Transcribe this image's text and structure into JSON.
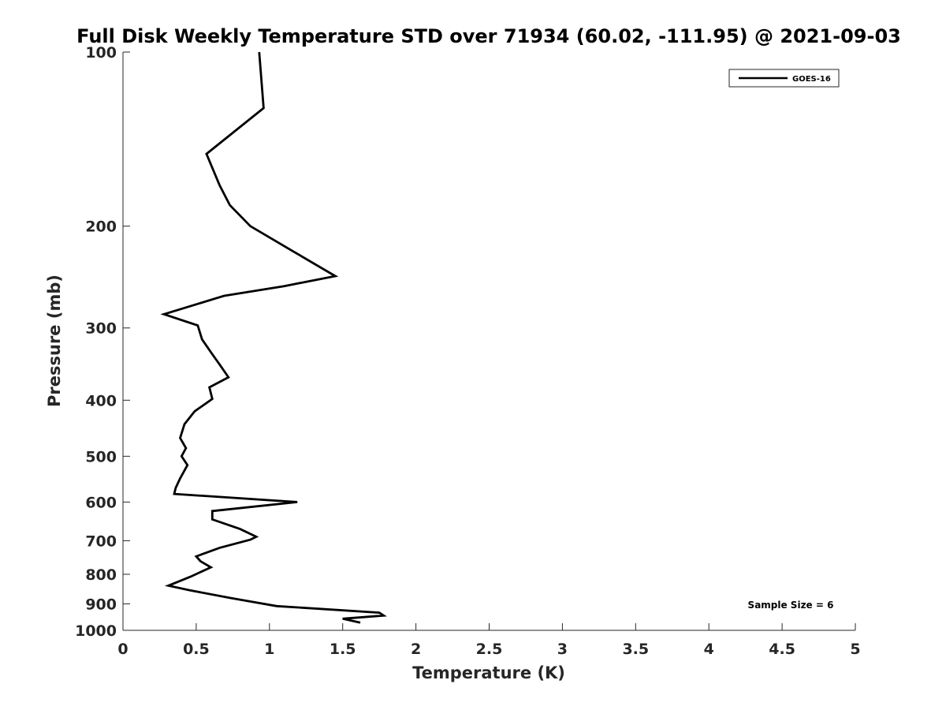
{
  "chart_data": {
    "type": "line",
    "title": "Full Disk Weekly Temperature STD over 71934 (60.02, -111.95) @ 2021-09-03",
    "xlabel": "Temperature (K)",
    "ylabel": "Pressure (mb)",
    "xlim": [
      0,
      5
    ],
    "ylim": [
      100,
      1000
    ],
    "y_scale": "log",
    "y_reversed": true,
    "x_ticks": [
      "0",
      "0.5",
      "1",
      "1.5",
      "2",
      "2.5",
      "3",
      "3.5",
      "4",
      "4.5",
      "5"
    ],
    "y_ticks": [
      "100",
      "200",
      "300",
      "400",
      "500",
      "600",
      "700",
      "800",
      "900",
      "1000"
    ],
    "grid": false,
    "legend_position": "top-right",
    "series": [
      {
        "name": "GOES-16",
        "color": "#000000",
        "points": [
          [
            0.93,
            100
          ],
          [
            0.96,
            125
          ],
          [
            0.57,
            150
          ],
          [
            0.66,
            170
          ],
          [
            0.73,
            184
          ],
          [
            0.87,
            200
          ],
          [
            1.16,
            221
          ],
          [
            1.45,
            244
          ],
          [
            1.1,
            254
          ],
          [
            0.69,
            264
          ],
          [
            0.28,
            284
          ],
          [
            0.51,
            297
          ],
          [
            0.54,
            314
          ],
          [
            0.61,
            333
          ],
          [
            0.66,
            347
          ],
          [
            0.72,
            365
          ],
          [
            0.59,
            380
          ],
          [
            0.61,
            398
          ],
          [
            0.49,
            418
          ],
          [
            0.42,
            440
          ],
          [
            0.39,
            465
          ],
          [
            0.43,
            484
          ],
          [
            0.4,
            500
          ],
          [
            0.44,
            518
          ],
          [
            0.39,
            546
          ],
          [
            0.36,
            567
          ],
          [
            0.35,
            581
          ],
          [
            1.19,
            600
          ],
          [
            0.61,
            622
          ],
          [
            0.61,
            643
          ],
          [
            0.8,
            668
          ],
          [
            0.91,
            689
          ],
          [
            0.87,
            697
          ],
          [
            0.66,
            720
          ],
          [
            0.5,
            745
          ],
          [
            0.53,
            760
          ],
          [
            0.6,
            778
          ],
          [
            0.46,
            808
          ],
          [
            0.31,
            837
          ],
          [
            0.45,
            852
          ],
          [
            0.73,
            879
          ],
          [
            1.05,
            908
          ],
          [
            1.75,
            932
          ],
          [
            1.78,
            943
          ],
          [
            1.5,
            955
          ],
          [
            1.62,
            970
          ]
        ]
      }
    ],
    "annotation": "Sample Size = 6"
  }
}
